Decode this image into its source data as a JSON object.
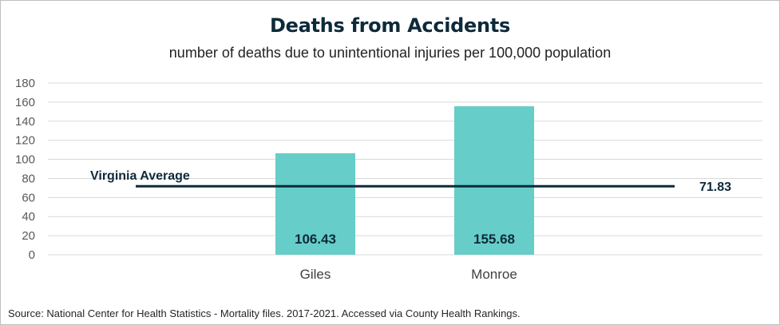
{
  "chart_data": {
    "type": "bar",
    "title": "Deaths from Accidents",
    "subtitle": "number of deaths due to unintentional injuries per 100,000 population",
    "categories": [
      "Giles",
      "Monroe"
    ],
    "values": [
      106.43,
      155.68
    ],
    "value_labels": [
      "106.43",
      "155.68"
    ],
    "ylim": [
      0,
      180
    ],
    "yticks": [
      0,
      20,
      40,
      60,
      80,
      100,
      120,
      140,
      160,
      180
    ],
    "grid": true,
    "legend": "none",
    "bar_color": "#66cdc8",
    "reference_line": {
      "label": "Virginia Average",
      "value": 71.83,
      "value_label": "71.83",
      "color": "#0d2a3a"
    }
  },
  "source": "Source:  National Center for Health Statistics - Mortality files. 2017-2021. Accessed via County Health Rankings."
}
